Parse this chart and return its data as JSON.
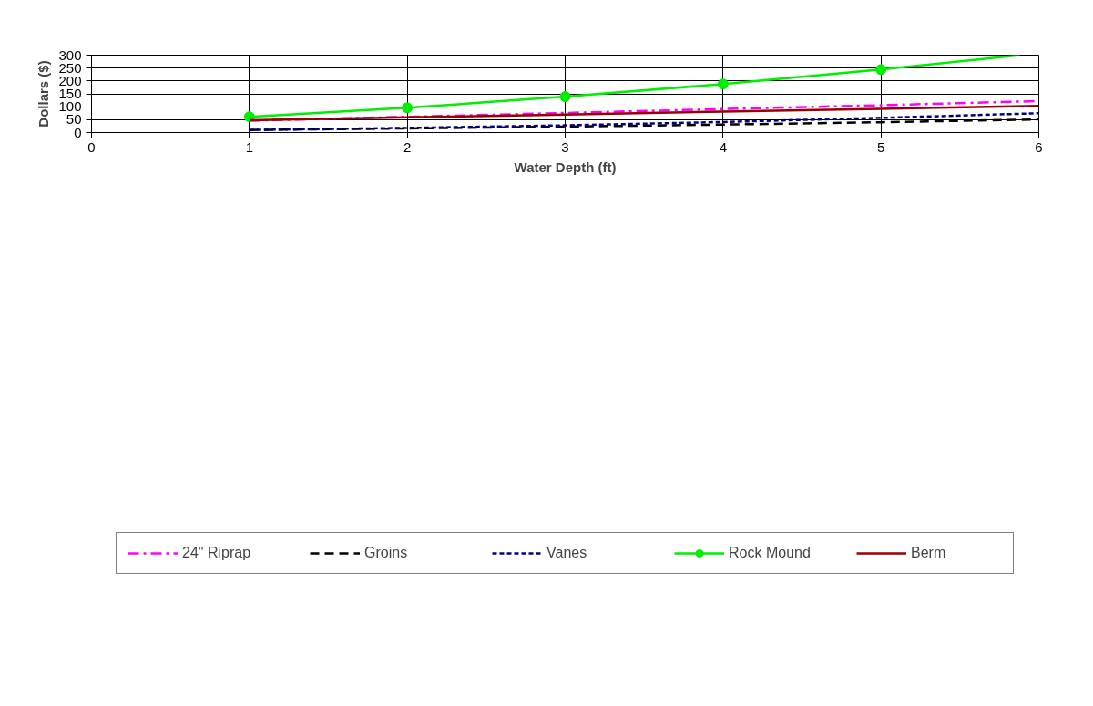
{
  "chart_data": {
    "type": "line",
    "xlabel": "Water Depth (ft)",
    "ylabel": "Dollars ($)",
    "xlim": [
      0,
      6
    ],
    "ylim": [
      0,
      300
    ],
    "xticks": [
      0,
      1,
      2,
      3,
      4,
      5,
      6
    ],
    "yticks": [
      0,
      50,
      100,
      150,
      200,
      250,
      300
    ],
    "grid": true,
    "legend": "bottom",
    "series": [
      {
        "name": "24\" Riprap",
        "color": "#ff00ff",
        "line_style": "dashdot",
        "marker": "none",
        "x": [
          1,
          2,
          3,
          4,
          5,
          6
        ],
        "values": [
          46,
          61,
          76,
          91,
          106,
          122
        ]
      },
      {
        "name": "Groins",
        "color": "#000000",
        "line_style": "dashed",
        "marker": "none",
        "x": [
          1,
          2,
          3,
          4,
          5,
          6
        ],
        "values": [
          10,
          16,
          23,
          31,
          40,
          51
        ]
      },
      {
        "name": "Vanes",
        "color": "#000080",
        "line_style": "dotted",
        "marker": "none",
        "x": [
          1,
          2,
          3,
          4,
          5,
          6
        ],
        "values": [
          10,
          18,
          28,
          41,
          57,
          75
        ]
      },
      {
        "name": "Rock Mound",
        "color": "#00ee00",
        "line_style": "solid",
        "marker": "circle",
        "x": [
          1,
          2,
          3,
          4,
          5
        ],
        "values": [
          61,
          96,
          139,
          188,
          244
        ]
      },
      {
        "name": null,
        "color": "#00ee00",
        "line_style": "solid",
        "marker": "none",
        "x": [
          5,
          5.88
        ],
        "values": [
          244,
          300
        ]
      },
      {
        "name": "Berm",
        "color": "#990000",
        "line_style": "solid",
        "marker": "none",
        "x": [
          1,
          2,
          3,
          4,
          5,
          6
        ],
        "values": [
          48,
          59,
          70,
          81,
          92,
          103
        ]
      }
    ]
  }
}
